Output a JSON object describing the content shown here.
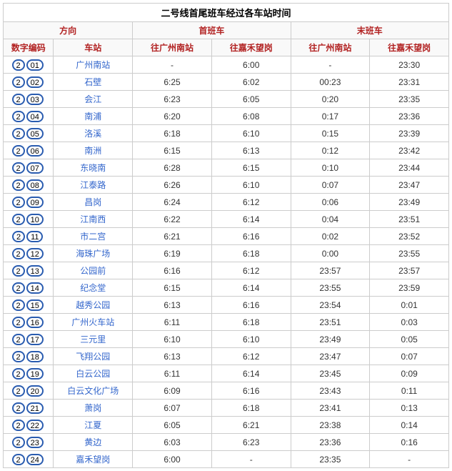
{
  "title": "二号线首尾班车经过各车站时间",
  "headers": {
    "direction": "方向",
    "first": "首班车",
    "last": "末班车",
    "code": "数字编码",
    "station": "车站",
    "toSouth": "往广州南站",
    "toJiahe": "往嘉禾望岗"
  },
  "rows": [
    {
      "c1": "2",
      "c2": "01",
      "station": "广州南站",
      "fs": "-",
      "fj": "6:00",
      "ls": "-",
      "lj": "23:30"
    },
    {
      "c1": "2",
      "c2": "02",
      "station": "石壁",
      "fs": "6:25",
      "fj": "6:02",
      "ls": "00:23",
      "lj": "23:31"
    },
    {
      "c1": "2",
      "c2": "03",
      "station": "会江",
      "fs": "6:23",
      "fj": "6:05",
      "ls": "0:20",
      "lj": "23:35"
    },
    {
      "c1": "2",
      "c2": "04",
      "station": "南浦",
      "fs": "6:20",
      "fj": "6:08",
      "ls": "0:17",
      "lj": "23:36"
    },
    {
      "c1": "2",
      "c2": "05",
      "station": "洛溪",
      "fs": "6:18",
      "fj": "6:10",
      "ls": "0:15",
      "lj": "23:39"
    },
    {
      "c1": "2",
      "c2": "06",
      "station": "南洲",
      "fs": "6:15",
      "fj": "6:13",
      "ls": "0:12",
      "lj": "23:42"
    },
    {
      "c1": "2",
      "c2": "07",
      "station": "东晓南",
      "fs": "6:28",
      "fj": "6:15",
      "ls": "0:10",
      "lj": "23:44"
    },
    {
      "c1": "2",
      "c2": "08",
      "station": "江泰路",
      "fs": "6:26",
      "fj": "6:10",
      "ls": "0:07",
      "lj": "23:47"
    },
    {
      "c1": "2",
      "c2": "09",
      "station": "昌岗",
      "fs": "6:24",
      "fj": "6:12",
      "ls": "0:06",
      "lj": "23:49"
    },
    {
      "c1": "2",
      "c2": "10",
      "station": "江南西",
      "fs": "6:22",
      "fj": "6:14",
      "ls": "0:04",
      "lj": "23:51"
    },
    {
      "c1": "2",
      "c2": "11",
      "station": "市二宫",
      "fs": "6:21",
      "fj": "6:16",
      "ls": "0:02",
      "lj": "23:52"
    },
    {
      "c1": "2",
      "c2": "12",
      "station": "海珠广场",
      "fs": "6:19",
      "fj": "6:18",
      "ls": "0:00",
      "lj": "23:55"
    },
    {
      "c1": "2",
      "c2": "13",
      "station": "公园前",
      "fs": "6:16",
      "fj": "6:12",
      "ls": "23:57",
      "lj": "23:57"
    },
    {
      "c1": "2",
      "c2": "14",
      "station": "纪念堂",
      "fs": "6:15",
      "fj": "6:14",
      "ls": "23:55",
      "lj": "23:59"
    },
    {
      "c1": "2",
      "c2": "15",
      "station": "越秀公园",
      "fs": "6:13",
      "fj": "6:16",
      "ls": "23:54",
      "lj": "0:01"
    },
    {
      "c1": "2",
      "c2": "16",
      "station": "广州火车站",
      "fs": "6:11",
      "fj": "6:18",
      "ls": "23:51",
      "lj": "0:03"
    },
    {
      "c1": "2",
      "c2": "17",
      "station": "三元里",
      "fs": "6:10",
      "fj": "6:10",
      "ls": "23:49",
      "lj": "0:05"
    },
    {
      "c1": "2",
      "c2": "18",
      "station": "飞翔公园",
      "fs": "6:13",
      "fj": "6:12",
      "ls": "23:47",
      "lj": "0:07"
    },
    {
      "c1": "2",
      "c2": "19",
      "station": "白云公园",
      "fs": "6:11",
      "fj": "6:14",
      "ls": "23:45",
      "lj": "0:09"
    },
    {
      "c1": "2",
      "c2": "20",
      "station": "白云文化广场",
      "fs": "6:09",
      "fj": "6:16",
      "ls": "23:43",
      "lj": "0:11"
    },
    {
      "c1": "2",
      "c2": "21",
      "station": "萧岗",
      "fs": "6:07",
      "fj": "6:18",
      "ls": "23:41",
      "lj": "0:13"
    },
    {
      "c1": "2",
      "c2": "22",
      "station": "江夏",
      "fs": "6:05",
      "fj": "6:21",
      "ls": "23:38",
      "lj": "0:14"
    },
    {
      "c1": "2",
      "c2": "23",
      "station": "黄边",
      "fs": "6:03",
      "fj": "6:23",
      "ls": "23:36",
      "lj": "0:16"
    },
    {
      "c1": "2",
      "c2": "24",
      "station": "嘉禾望岗",
      "fs": "6:00",
      "fj": "-",
      "ls": "23:35",
      "lj": "-"
    }
  ]
}
